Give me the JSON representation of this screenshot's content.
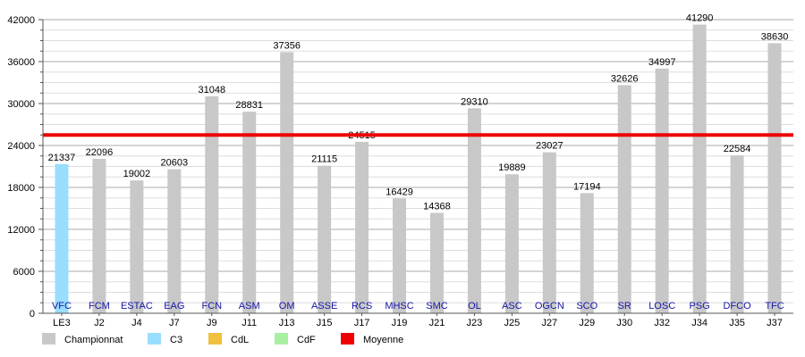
{
  "chart_data": {
    "type": "bar",
    "title": "",
    "xlabel": "",
    "ylabel": "",
    "ylim": [
      0,
      42000
    ],
    "yticks": [
      0,
      6000,
      12000,
      18000,
      24000,
      30000,
      36000,
      42000
    ],
    "grid": true,
    "categories": [
      "LE3",
      "J2",
      "J4",
      "J7",
      "J9",
      "J11",
      "J13",
      "J15",
      "J17",
      "J19",
      "J21",
      "J23",
      "J25",
      "J27",
      "J29",
      "J30",
      "J32",
      "J34",
      "J35",
      "J37"
    ],
    "teams": [
      "VFC",
      "FCM",
      "ESTAC",
      "EAG",
      "FCN",
      "ASM",
      "OM",
      "ASSE",
      "RCS",
      "MHSC",
      "SMC",
      "OL",
      "ASC",
      "OGCN",
      "SCO",
      "SR",
      "LOSC",
      "PSG",
      "DFCO",
      "TFC"
    ],
    "values": [
      21337,
      22096,
      19002,
      20603,
      31048,
      28831,
      37356,
      21115,
      24515,
      16429,
      14368,
      29310,
      19889,
      23027,
      17194,
      32626,
      34997,
      41290,
      22584,
      38630
    ],
    "competition": [
      "C3",
      "Championnat",
      "Championnat",
      "Championnat",
      "Championnat",
      "Championnat",
      "Championnat",
      "Championnat",
      "Championnat",
      "Championnat",
      "Championnat",
      "Championnat",
      "Championnat",
      "Championnat",
      "Championnat",
      "Championnat",
      "Championnat",
      "Championnat",
      "Championnat",
      "Championnat"
    ],
    "average": 25500,
    "legend_position": "bottom",
    "legend": [
      {
        "name": "Championnat",
        "color": "#c8c8c8"
      },
      {
        "name": "C3",
        "color": "#99ddff"
      },
      {
        "name": "CdL",
        "color": "#f0c040"
      },
      {
        "name": "CdF",
        "color": "#a8f0a0"
      },
      {
        "name": "Moyenne",
        "color": "#ee0000"
      }
    ],
    "competition_colors": {
      "Championnat": "#c8c8c8",
      "C3": "#99ddff",
      "CdL": "#f0c040",
      "CdF": "#a8f0a0"
    },
    "average_color": "#ee0000"
  }
}
